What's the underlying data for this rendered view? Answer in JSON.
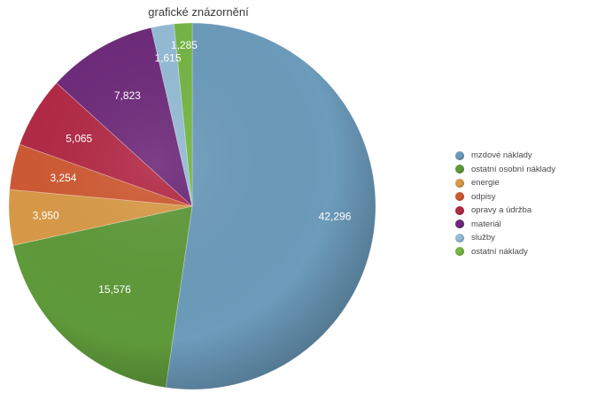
{
  "chart_data": {
    "type": "pie",
    "title": "grafické znázornění",
    "categories": [
      "mzdové náklady",
      "ostatní osobní náklady",
      "energie",
      "odpisy",
      "opravy a údržba",
      "materiál",
      "služby",
      "ostatní náklady"
    ],
    "values": [
      42296,
      15576,
      3950,
      3254,
      5065,
      7823,
      1615,
      1285
    ],
    "value_labels": [
      "42,296",
      "15,576",
      "3,950",
      "3,254",
      "5,065",
      "7,823",
      "1,615",
      "1,285"
    ],
    "colors": [
      "#6c9bbb",
      "#5f9a3a",
      "#d99a47",
      "#cf5a33",
      "#b32945",
      "#6e2a7a",
      "#94bcd6",
      "#74b545"
    ],
    "legend_position": "right"
  }
}
